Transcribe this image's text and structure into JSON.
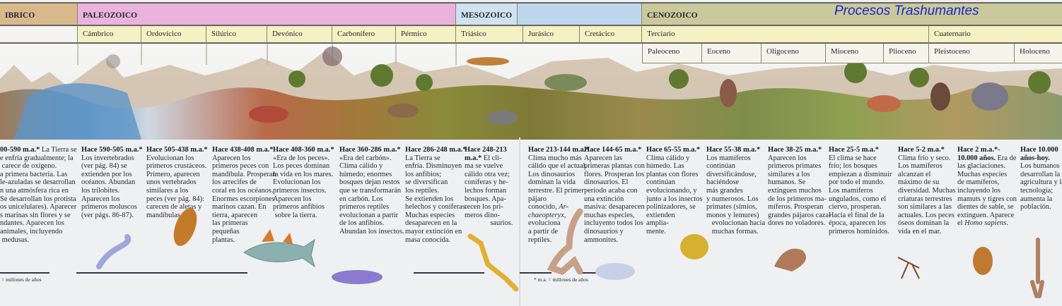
{
  "brand": "Procesos Trashumantes",
  "colors": {
    "precambrico": "#d8b98c",
    "paleozoico": "#eab3dd",
    "mesozoico": "#bdd7ec",
    "mesozoico_label": "#cfe2f0",
    "cenozoico": "#c9c99c",
    "period_row": "#f4f1c4",
    "brand_text": "#1a28c8"
  },
  "eras": [
    {
      "label": "IBRICO"
    },
    {
      "label": "PALEOZOICO"
    },
    {
      "label": "MESOZOICO"
    },
    {
      "label": ""
    },
    {
      "label": "CENOZOICO"
    }
  ],
  "periods": [
    {
      "label": ""
    },
    {
      "label": "Cámbrico"
    },
    {
      "label": "Ordovícico"
    },
    {
      "label": "Silúrico"
    },
    {
      "label": "Devónico"
    },
    {
      "label": "Carbonífero"
    },
    {
      "label": "Pérmico"
    },
    {
      "label": "Triásico"
    },
    {
      "label": "Jurásico"
    },
    {
      "label": "Cretácico"
    },
    {
      "label": "Terciario"
    },
    {
      "label": "Cuaternario"
    }
  ],
  "epochs": [
    {
      "label": "Paleoceno"
    },
    {
      "label": "Eoceno"
    },
    {
      "label": "Oligoceno"
    },
    {
      "label": "Mioceno"
    },
    {
      "label": "Plioceno"
    },
    {
      "label": "Pleistoceno"
    },
    {
      "label": "Holoceno"
    }
  ],
  "columns": [
    {
      "title": "00-590 m.a.*",
      "parts": [
        {
          "t": " La Tierra se\ne enfría gradualmente; la\n carece de oxígeno.\na primera bacteria. Las\nle-azuladas se desarrollan\nn una atmósfera rica en\nSe desarrollan los protistas\nos unicelulares). Aparecen\ns marinas sin flores y se\nndantes. Aparecen los\nanimales, incluyendo\n medusas."
        }
      ]
    },
    {
      "title": "Hace 590-505 m.a.*",
      "parts": [
        {
          "t": "\nLos invertebrados\n(ver pág. 84) se\nextienden por los\nocéanos. Abundan\nlos trilobites.\nAparecen los\nprimeros moluscos\n(ver págs. 86-87)."
        }
      ]
    },
    {
      "title": "Hace 505-438 m.a.*",
      "parts": [
        {
          "t": "\nEvolucionan los\nprimeros crustáceos.\nPrimero, aparecen\nunos vertebrados\nsimilares a los\npeces (ver pág. 84):\ncarecen de aletas y\nmandíbulas."
        }
      ]
    },
    {
      "title": "Hace 438-408 m.a.*",
      "parts": [
        {
          "t": "\nAparecen los\nprimeros peces con\nmandíbula. Prosperan\nlos arrecifes de\ncoral en los océanos.\nEnormes escorpiones\nmarinos cazan. En\ntierra, aparecen\nlas primeras\npequeñas\nplantas."
        }
      ]
    },
    {
      "title": "Hace 408-360 m.a.*",
      "parts": [
        {
          "t": "\n«Era de los peces».\nLos peces dominan\nla vida en los mares.\nEvolucionan los\nprimeros insectos.\nAparecen los\nprimeros anfibios\n sobre la tierra."
        }
      ]
    },
    {
      "title": "Hace 360-286 m.a.*",
      "parts": [
        {
          "t": "\n«Era del carbón».\nClima cálido y\nhúmedo; enormes\nbosques dejan restos\nque se transformarán\nen carbón. Los\nprimeros reptiles\nevolucionan a partir\nde los anfibios.\nAbundan los insectos."
        }
      ]
    },
    {
      "title": "Hace 286-248 m.a.*",
      "parts": [
        {
          "t": "\nLa Tierra se\nenfría. Disminuyen\nlos anfibios;\nse diversifican\nlos reptiles.\nSe extienden los\nhelechos y coníferas.\nMuchas especies\ndesaparecen en la\nmayor extinción en\nmasa conocida."
        }
      ]
    },
    {
      "title": "Hace 248-213\nm.a.*",
      "parts": [
        {
          "t": " El cli-\nma se vuelve\ncálido otra vez;\nconíferas y he-\nlechos forman\nbosques. Apa-\nrecen los pri-\nmeros dino-\n              saurios."
        }
      ]
    },
    {
      "title": "Hace 213-144 m.a.*",
      "parts": [
        {
          "t": "\nClima mucho más\ncálido que el actual.\nLos dinosaurios\ndominan la vida\nterrestre. El primer\npájaro\nconocido, "
        },
        {
          "t": "Ar-\nchaeopteryx",
          "i": true
        },
        {
          "t": ",\nevoluciona\na partir de\nreptiles."
        }
      ]
    },
    {
      "title": "Hace 144-65 m.a.*",
      "parts": [
        {
          "t": "\nAparecen las\nprimeras plantas con\nflores. Prosperan los\ndinosaurios. El\nperíodo acaba con\nuna extinción\nmasiva: desaparecen\nmuchas especies,\nincluyento todos los\ndinosaurios y\nammonites."
        }
      ]
    },
    {
      "title": "Hace 65-55 m.a.*",
      "parts": [
        {
          "t": "\nClima cálido y\nhúmedo. Las\nplantas con flores\ncontinúan\nevolucionando, y\njunto a los insectos\npolinizadores, se\nextienden\nampliа-\nmente."
        }
      ]
    },
    {
      "title": "Hace 55-38 m.a.*",
      "parts": [
        {
          "t": "\nLos mamíferos\ncontinúan\ndiversificándose,\nhaciéndose\nmás grandes\ny numerosos. Los\nprimates (simios,\nmonos y lemures)\n   evolucionan hacia\n   muchas formas."
        }
      ]
    },
    {
      "title": "Hace 38-25 m.a.*",
      "parts": [
        {
          "t": "\nAparecen los\nprimeros primates\nsimilares a los\nhumanos. Se\nextinguen muchos\nde los primeros ma-\nmíferos. Prosperan\ngrandes pájaros caza-\ndores no voladores."
        }
      ]
    },
    {
      "title": "Hace 25-5 m.a.*",
      "parts": [
        {
          "t": "\nEl clima se hace\nfrío; los bosques\nempiezan a disminuir\npor todo el mundo.\nLos mamíferos\nungulados, como el\nciervo, prosperan.\nHacia el final de la\népoca, aparecen los\nprimeros homínidos."
        }
      ]
    },
    {
      "title": "Hace 5-2 m.a.*",
      "parts": [
        {
          "t": "\nClima frío y seco.\nLos mamíferos\nalcanzan el\nmáximo de su\ndiversidad. Muchas\ncriaturas terrestres\nson similares a las\nactuales. Los peces\nóseos dominan la\nvida en el mar."
        }
      ]
    },
    {
      "title": "Hace 2 m.a.*-\n10.000 años.",
      "parts": [
        {
          "t": " Era de\nlas glaciaciones.\nMuchas especies\nde mamíferos,\nincluyendo los\nmamuts y tigres con\ndientes de sable, se\nextinguen. Aparece\nel "
        },
        {
          "t": "Homo sapiens",
          "i": true
        },
        {
          "t": "."
        }
      ]
    },
    {
      "title": "Hace 10.000\naños-hoy.",
      "parts": [
        {
          "t": "\nLos humanos\ndesarrollan la\nagricultura y la\ntecnología;\naumenta la\npoblación."
        }
      ]
    }
  ],
  "footnotes": {
    "left": "= millones de años",
    "right": "* m.a. = millones de años"
  }
}
